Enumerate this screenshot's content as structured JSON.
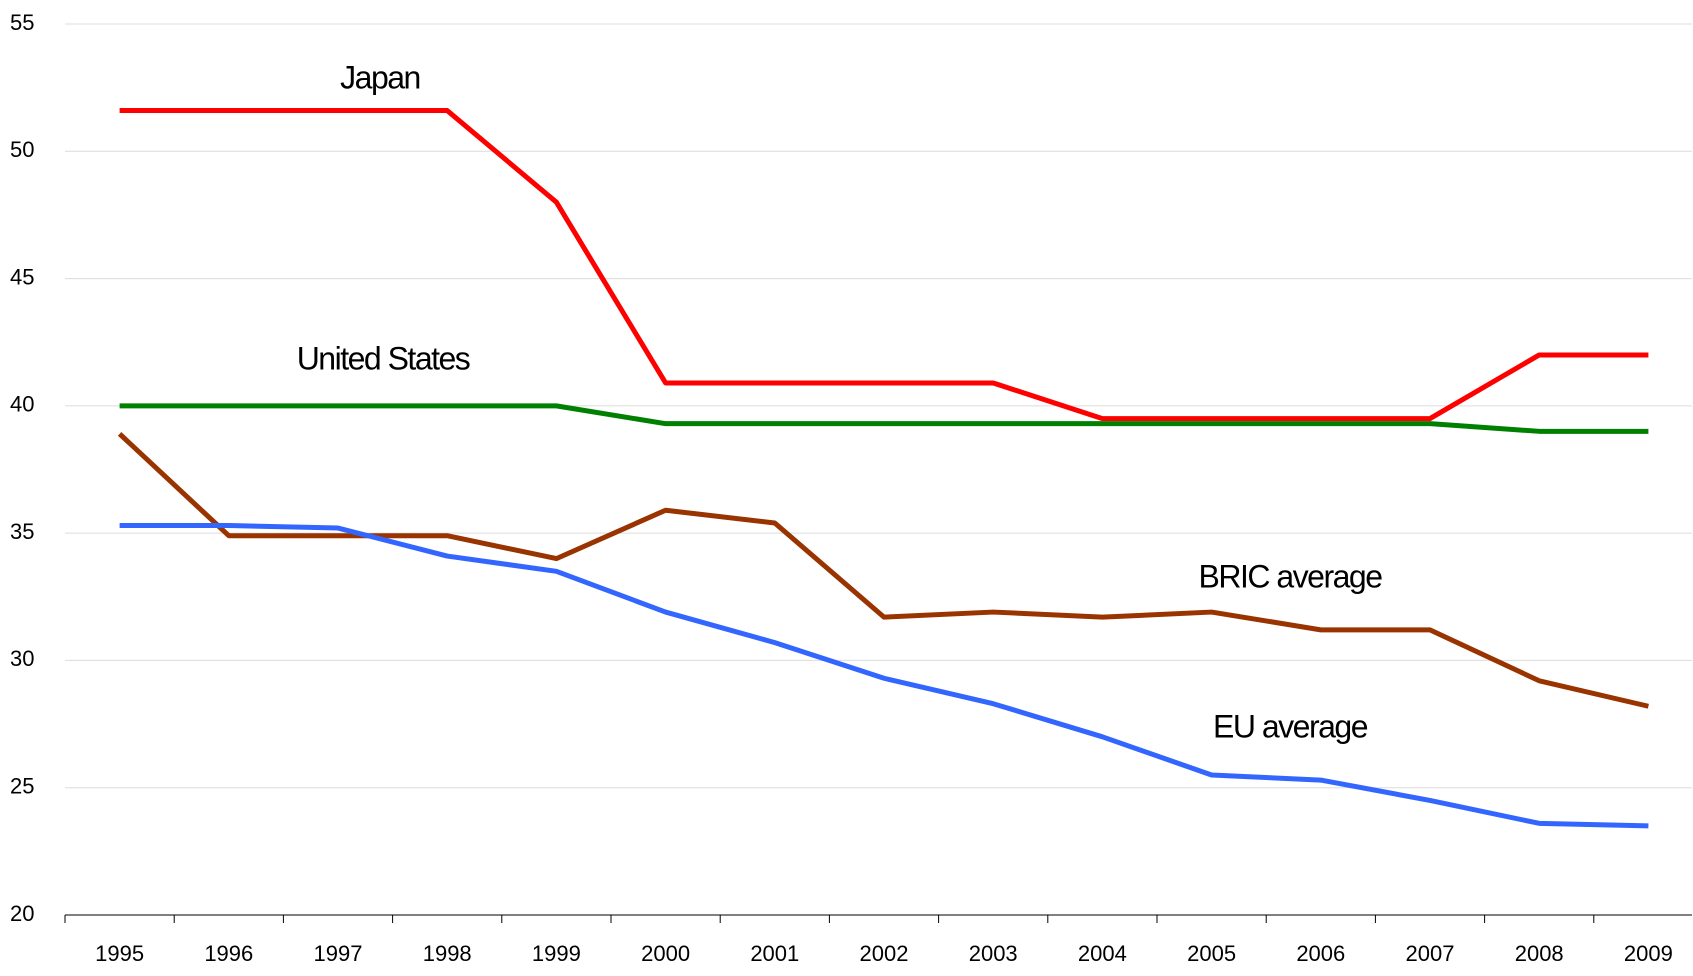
{
  "chart_data": {
    "type": "line",
    "categories": [
      "1995",
      "1996",
      "1997",
      "1998",
      "1999",
      "2000",
      "2001",
      "2002",
      "2003",
      "2004",
      "2005",
      "2006",
      "2007",
      "2008",
      "2009"
    ],
    "series": [
      {
        "name": "Japan",
        "color": "#ff0000",
        "values": [
          51.6,
          51.6,
          51.6,
          51.6,
          48,
          40.9,
          40.9,
          40.9,
          40.9,
          39.5,
          39.5,
          39.5,
          39.5,
          42,
          42
        ]
      },
      {
        "name": "United States",
        "color": "#008000",
        "values": [
          40,
          40,
          40,
          40,
          40,
          39.3,
          39.3,
          39.3,
          39.3,
          39.3,
          39.3,
          39.3,
          39.3,
          39,
          39
        ]
      },
      {
        "name": "BRIC average",
        "color": "#993300",
        "values": [
          38.9,
          34.9,
          34.9,
          34.9,
          34,
          35.9,
          35.4,
          31.7,
          31.9,
          31.7,
          31.9,
          31.2,
          31.2,
          29.2,
          28.2
        ]
      },
      {
        "name": "EU average",
        "color": "#3366ff",
        "values": [
          35.3,
          35.3,
          35.2,
          34.1,
          33.5,
          31.9,
          30.7,
          29.3,
          28.3,
          27,
          25.5,
          25.3,
          24.5,
          23.6,
          23.5
        ]
      }
    ],
    "ylim": [
      20,
      55
    ],
    "yticks": [
      20,
      25,
      30,
      35,
      40,
      45,
      50,
      55
    ],
    "grid": true
  }
}
